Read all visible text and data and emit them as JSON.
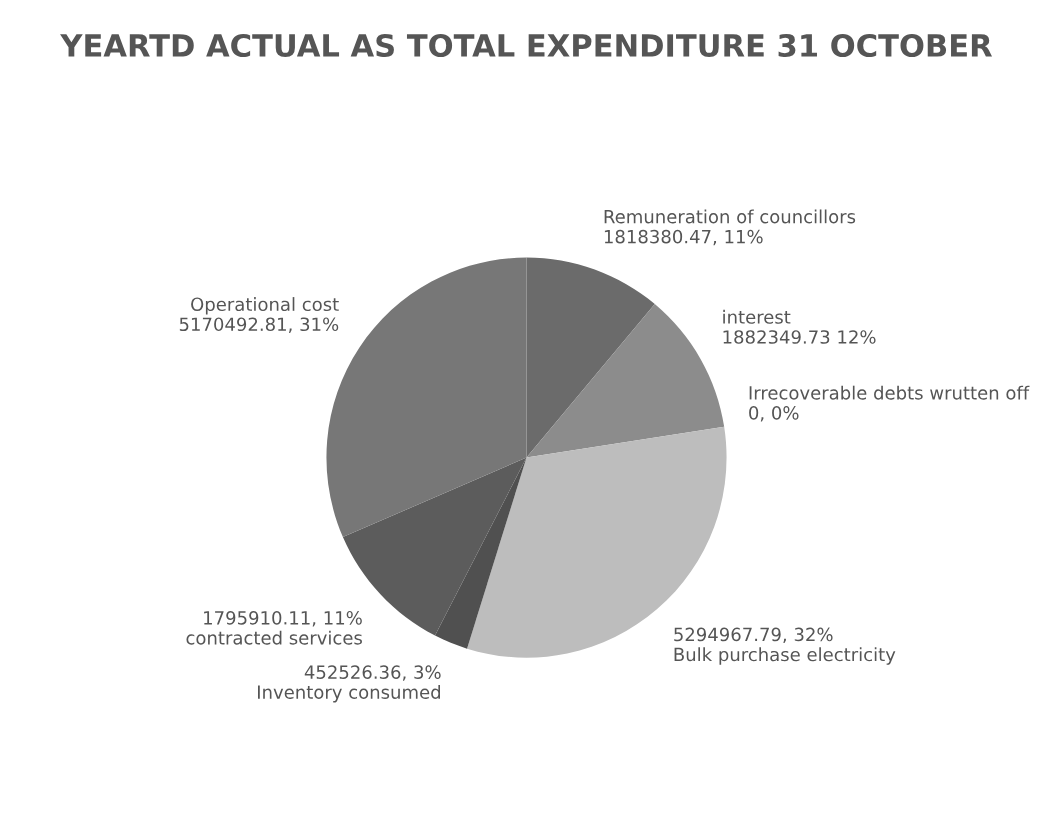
{
  "chart_data": {
    "type": "pie",
    "title": "YEARTD ACTUAL AS TOTAL EXPENDITURE 31 OCTOBER",
    "categories": [
      "Remuneration of councillors",
      "interest",
      "Irrecoverable debts wrutten off",
      "Bulk purchase electricity",
      "Inventory consumed",
      "contracted services",
      "Operational cost"
    ],
    "values": [
      1818380.47,
      1882349.73,
      0,
      5294967.79,
      452526.36,
      1795910.11,
      5170492.81
    ],
    "value_labels": [
      "1818380.47, 11%",
      "1882349.73 12%",
      "0, 0%",
      "5294967.79, 32%",
      "452526.36, 3%",
      "1795910.11, 11%",
      "5170492.81, 31%"
    ],
    "colors": [
      "#6b6b6b",
      "#8c8c8c",
      "#cfcfcf",
      "#bdbdbd",
      "#505050",
      "#5c5c5c",
      "#777777"
    ],
    "legend": false
  }
}
